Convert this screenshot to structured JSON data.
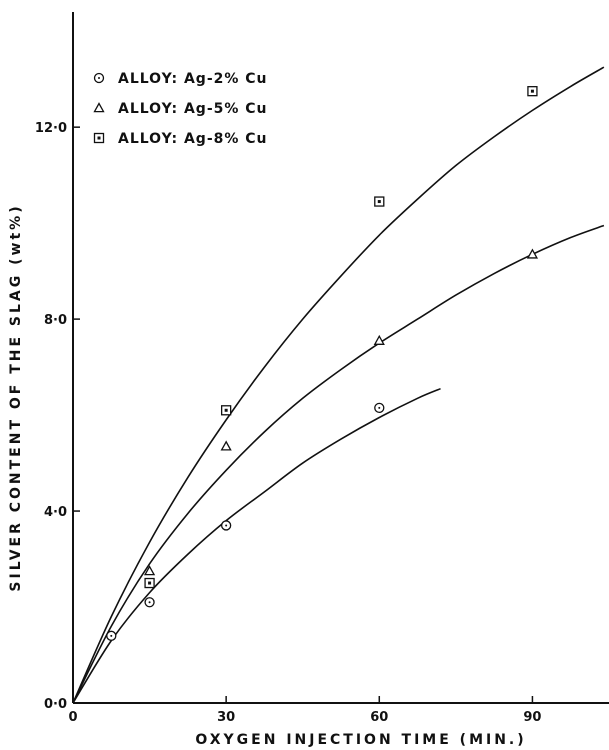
{
  "chart_data": {
    "type": "scatter",
    "title": "",
    "xlabel": "OXYGEN  INJECTION  TIME   (MIN.)",
    "ylabel": "SILVER  CONTENT  OF  THE  SLAG  (wt%)",
    "xlim": [
      0,
      105
    ],
    "ylim": [
      0,
      14.4
    ],
    "x_ticks": [
      0,
      30,
      60,
      90
    ],
    "x_tick_labels": [
      "0",
      "30",
      "60",
      "90"
    ],
    "y_ticks": [
      0,
      4,
      8,
      12
    ],
    "y_tick_labels": [
      "0·0",
      "4·0",
      "8·0",
      "12·0"
    ],
    "grid": false,
    "legend_position": "top-left",
    "series": [
      {
        "name": "ALLOY: Ag-2% Cu",
        "marker": "circle",
        "points": [
          [
            7.5,
            1.4
          ],
          [
            15,
            2.1
          ],
          [
            30,
            3.7
          ],
          [
            60,
            6.15
          ]
        ],
        "fit_curve": [
          [
            0,
            0
          ],
          [
            7.5,
            1.3
          ],
          [
            15,
            2.3
          ],
          [
            22.5,
            3.1
          ],
          [
            30,
            3.8
          ],
          [
            37.5,
            4.4
          ],
          [
            45,
            5.0
          ],
          [
            52.5,
            5.5
          ],
          [
            60,
            5.95
          ],
          [
            67.5,
            6.35
          ],
          [
            72,
            6.55
          ]
        ]
      },
      {
        "name": "ALLOY: Ag-5% Cu",
        "marker": "triangle",
        "points": [
          [
            15,
            2.75
          ],
          [
            30,
            5.35
          ],
          [
            60,
            7.55
          ],
          [
            90,
            9.35
          ]
        ],
        "fit_curve": [
          [
            0,
            0
          ],
          [
            7.5,
            1.6
          ],
          [
            15,
            2.9
          ],
          [
            22.5,
            3.95
          ],
          [
            30,
            4.85
          ],
          [
            37.5,
            5.65
          ],
          [
            45,
            6.35
          ],
          [
            52.5,
            6.95
          ],
          [
            60,
            7.5
          ],
          [
            67.5,
            8.0
          ],
          [
            75,
            8.5
          ],
          [
            82.5,
            8.95
          ],
          [
            90,
            9.35
          ],
          [
            97.5,
            9.7
          ],
          [
            104,
            9.95
          ]
        ]
      },
      {
        "name": "ALLOY: Ag-8% Cu",
        "marker": "square",
        "points": [
          [
            15,
            2.5
          ],
          [
            30,
            6.1
          ],
          [
            60,
            10.45
          ],
          [
            90,
            12.75
          ]
        ],
        "fit_curve": [
          [
            0,
            0
          ],
          [
            7.5,
            1.8
          ],
          [
            15,
            3.35
          ],
          [
            22.5,
            4.7
          ],
          [
            30,
            5.9
          ],
          [
            37.5,
            7.0
          ],
          [
            45,
            8.0
          ],
          [
            52.5,
            8.9
          ],
          [
            60,
            9.75
          ],
          [
            67.5,
            10.5
          ],
          [
            75,
            11.2
          ],
          [
            82.5,
            11.8
          ],
          [
            90,
            12.35
          ],
          [
            97.5,
            12.85
          ],
          [
            104,
            13.25
          ]
        ]
      }
    ]
  }
}
